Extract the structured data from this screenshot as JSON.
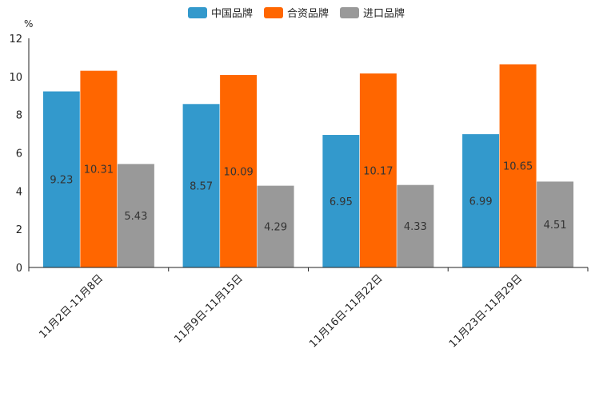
{
  "chart_data": {
    "type": "bar",
    "ylabel": "%",
    "ylim": [
      0,
      12
    ],
    "yticks": [
      0,
      2,
      4,
      6,
      8,
      10,
      12
    ],
    "categories": [
      "11月2日-11月8日",
      "11月9日-11月15日",
      "11月16日-11月22日",
      "11月23日-11月29日"
    ],
    "series": [
      {
        "name": "中国品牌",
        "color": "#3399cc",
        "values": [
          9.23,
          8.57,
          6.95,
          6.99
        ]
      },
      {
        "name": "合资品牌",
        "color": "#ff6600",
        "values": [
          10.31,
          10.09,
          10.17,
          10.65
        ]
      },
      {
        "name": "进口品牌",
        "color": "#999999",
        "values": [
          5.43,
          4.29,
          4.33,
          4.51
        ]
      }
    ],
    "legend_position": "top-center"
  }
}
